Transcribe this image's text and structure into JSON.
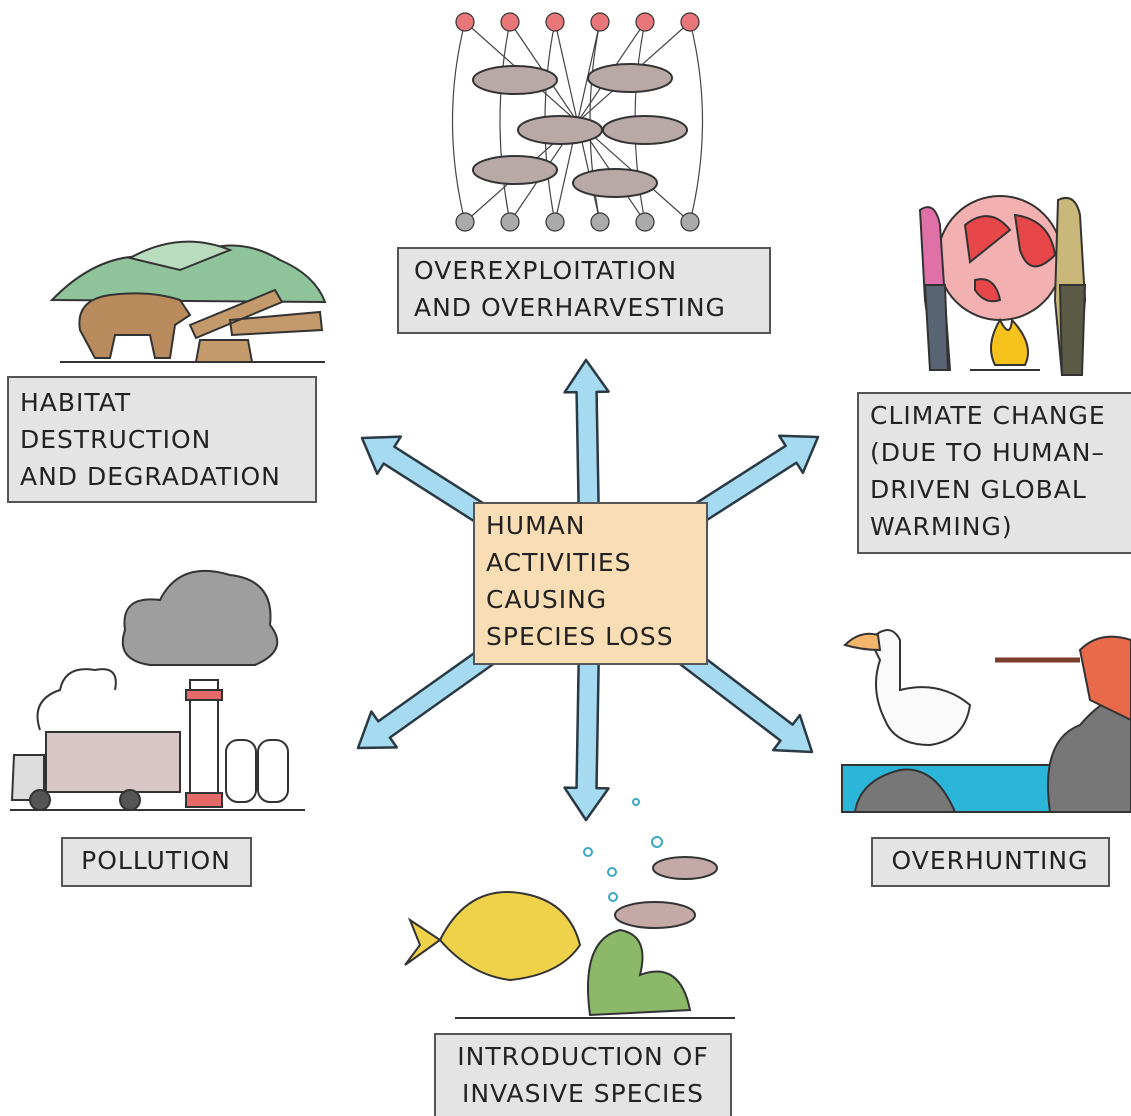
{
  "center": {
    "lines": [
      "HUMAN",
      "ACTIVITIES",
      "CAUSING",
      "SPECIES LOSS"
    ]
  },
  "nodes": [
    {
      "lines": [
        "OVEREXPLOITATION",
        "AND OVERHARVESTING"
      ]
    },
    {
      "lines": [
        "HABITAT",
        "DESTRUCTION",
        "AND DEGRADATION"
      ]
    },
    {
      "lines": [
        "CLIMATE CHANGE",
        "(DUE TO HUMAN–",
        "DRIVEN GLOBAL",
        "WARMING)"
      ]
    },
    {
      "lines": [
        "POLLUTION"
      ]
    },
    {
      "lines": [
        "OVERHUNTING"
      ]
    },
    {
      "lines": [
        "INTRODUCTION OF",
        "INVASIVE SPECIES"
      ]
    }
  ]
}
